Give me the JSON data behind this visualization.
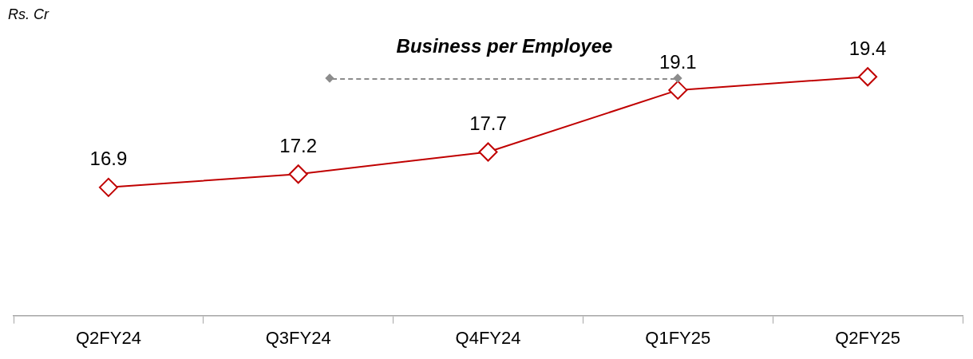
{
  "chart_data": {
    "type": "line",
    "title": "Business per Employee",
    "ylabel": "Rs. Cr",
    "categories": [
      "Q2FY24",
      "Q3FY24",
      "Q4FY24",
      "Q1FY25",
      "Q2FY25"
    ],
    "series": [
      {
        "color": "#c00000",
        "values": [
          16.9,
          17.2,
          17.7,
          19.1,
          19.4
        ]
      }
    ],
    "data_labels": true,
    "marker": "diamond"
  }
}
